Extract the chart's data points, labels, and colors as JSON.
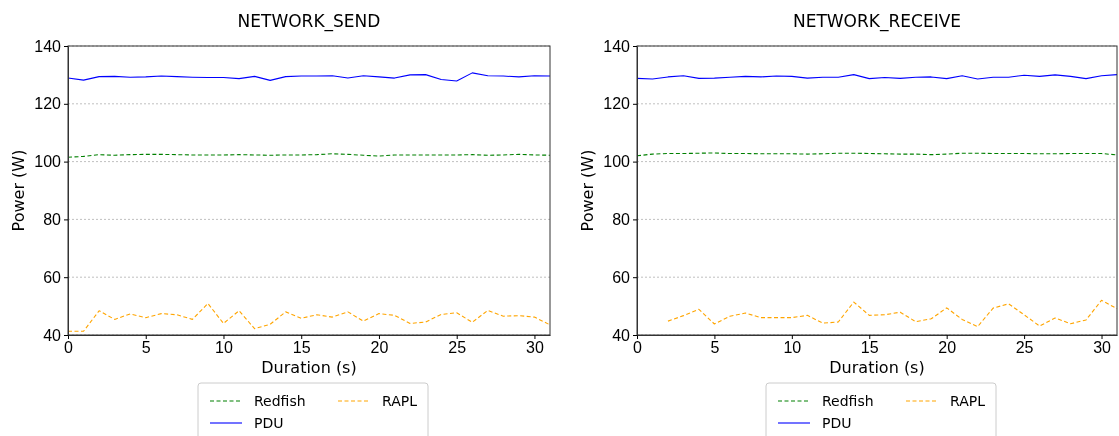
{
  "chart_data": [
    {
      "type": "line",
      "title": "NETWORK_SEND",
      "xlabel": "Duration (s)",
      "ylabel": "Power (W)",
      "x": [
        0,
        1,
        2,
        3,
        4,
        5,
        6,
        7,
        8,
        9,
        10,
        11,
        12,
        13,
        14,
        15,
        16,
        17,
        18,
        19,
        20,
        21,
        22,
        23,
        24,
        25,
        26,
        27,
        28,
        29,
        30,
        31
      ],
      "xlim": [
        0,
        31
      ],
      "xticks": [
        0,
        5,
        10,
        15,
        20,
        25,
        30
      ],
      "ylim": [
        40,
        140
      ],
      "yticks": [
        40,
        60,
        80,
        100,
        120,
        140
      ],
      "grid": "y",
      "legend": "bottom",
      "series": [
        {
          "name": "Redfish",
          "color": "#008000",
          "line_style": "dashed",
          "values": [
            101.5,
            101.8,
            102.4,
            102.2,
            102.4,
            102.5,
            102.5,
            102.4,
            102.3,
            102.3,
            102.3,
            102.4,
            102.3,
            102.2,
            102.3,
            102.3,
            102.4,
            102.7,
            102.5,
            102.2,
            101.9,
            102.3,
            102.3,
            102.3,
            102.3,
            102.3,
            102.4,
            102.2,
            102.3,
            102.5,
            102.3,
            102.2
          ]
        },
        {
          "name": "PDU",
          "color": "#0000ff",
          "line_style": "solid",
          "values": [
            128.9,
            128.2,
            129.4,
            129.5,
            129.2,
            129.3,
            129.6,
            129.4,
            129.2,
            129.1,
            129.1,
            128.7,
            129.5,
            128.1,
            129.4,
            129.6,
            129.6,
            129.7,
            128.9,
            129.7,
            129.3,
            128.9,
            130.0,
            130.1,
            128.4,
            127.9,
            130.7,
            129.7,
            129.6,
            129.3,
            129.7,
            129.6
          ]
        },
        {
          "name": "RAPL",
          "color": "#ffa500",
          "line_style": "dashed",
          "values": [
            41.3,
            41.3,
            48.4,
            45.4,
            47.3,
            46.0,
            47.4,
            47.0,
            45.4,
            50.9,
            44.0,
            48.4,
            42.2,
            43.7,
            48.0,
            45.8,
            47.0,
            46.2,
            48.0,
            44.8,
            47.4,
            46.8,
            44.0,
            44.5,
            47.1,
            47.7,
            44.4,
            48.5,
            46.5,
            46.7,
            46.2,
            43.5
          ]
        }
      ]
    },
    {
      "type": "line",
      "title": "NETWORK_RECEIVE",
      "xlabel": "Duration (s)",
      "ylabel": "Power (W)",
      "x": [
        0,
        1,
        2,
        3,
        4,
        5,
        6,
        7,
        8,
        9,
        10,
        11,
        12,
        13,
        14,
        15,
        16,
        17,
        18,
        19,
        20,
        21,
        22,
        23,
        24,
        25,
        26,
        27,
        28,
        29,
        30,
        31
      ],
      "xlim": [
        0,
        31
      ],
      "xticks": [
        0,
        5,
        10,
        15,
        20,
        25,
        30
      ],
      "ylim": [
        40,
        140
      ],
      "yticks": [
        40,
        60,
        80,
        100,
        120,
        140
      ],
      "grid": "y",
      "legend": "bottom",
      "series": [
        {
          "name": "Redfish",
          "color": "#008000",
          "line_style": "dashed",
          "values": [
            102.0,
            102.6,
            102.8,
            102.8,
            102.9,
            103.0,
            102.8,
            102.8,
            102.7,
            102.7,
            102.7,
            102.6,
            102.7,
            102.9,
            102.9,
            102.8,
            102.7,
            102.6,
            102.6,
            102.4,
            102.6,
            102.9,
            102.9,
            102.8,
            102.8,
            102.8,
            102.7,
            102.7,
            102.8,
            102.8,
            102.8,
            102.3
          ]
        },
        {
          "name": "PDU",
          "color": "#0000ff",
          "line_style": "solid",
          "values": [
            128.8,
            128.6,
            129.3,
            129.7,
            128.8,
            128.9,
            129.2,
            129.5,
            129.3,
            129.6,
            129.5,
            128.9,
            129.2,
            129.2,
            130.1,
            128.7,
            129.1,
            128.8,
            129.2,
            129.3,
            128.7,
            129.7,
            128.6,
            129.2,
            129.2,
            129.9,
            129.5,
            130.0,
            129.5,
            128.7,
            129.7,
            130.1
          ]
        },
        {
          "name": "RAPL",
          "color": "#ffa500",
          "line_style": "dashed",
          "values": [
            null,
            null,
            44.8,
            46.7,
            48.9,
            43.8,
            46.5,
            47.6,
            46.0,
            46.0,
            46.0,
            46.8,
            44.1,
            44.5,
            51.4,
            46.8,
            47.0,
            47.9,
            44.6,
            45.6,
            49.4,
            45.4,
            42.9,
            49.3,
            50.8,
            47.0,
            43.1,
            45.9,
            43.9,
            45.2,
            52.0,
            49.1
          ]
        }
      ]
    }
  ]
}
